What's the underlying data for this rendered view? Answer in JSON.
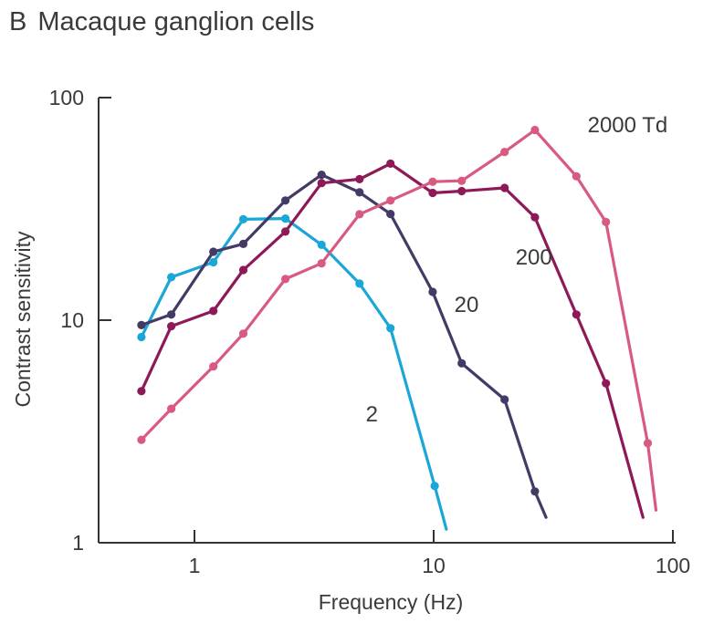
{
  "panel": {
    "letter": "B",
    "title": "Macaque ganglion cells"
  },
  "chart_data": {
    "type": "line",
    "title": "Macaque ganglion cells",
    "xlabel": "Frequency (Hz)",
    "ylabel": "Contrast sensitivity",
    "xscale": "log",
    "yscale": "log",
    "xlim": [
      0.4,
      100
    ],
    "ylim": [
      1,
      100
    ],
    "xticks": [
      {
        "value": 1,
        "label": "1"
      },
      {
        "value": 10,
        "label": "10"
      },
      {
        "value": 100,
        "label": "100"
      }
    ],
    "yticks": [
      {
        "value": 1,
        "label": "1"
      },
      {
        "value": 10,
        "label": "10"
      },
      {
        "value": 100,
        "label": "100"
      }
    ],
    "grid": false,
    "legend": "none",
    "series": [
      {
        "name": "2",
        "color": "#1aa7d8",
        "label_at": [
          5.2,
          3.5
        ],
        "points": [
          [
            0.6,
            8.4
          ],
          [
            0.8,
            15.6
          ],
          [
            1.2,
            18.2
          ],
          [
            1.6,
            28.4
          ],
          [
            2.4,
            28.6
          ],
          [
            3.4,
            21.8
          ],
          [
            4.9,
            14.6
          ],
          [
            6.6,
            9.2
          ],
          [
            10.1,
            1.8
          ],
          [
            11.3,
            1.15
          ]
        ],
        "markers": [
          true,
          true,
          true,
          true,
          true,
          true,
          true,
          true,
          true,
          false
        ]
      },
      {
        "name": "20",
        "color": "#443a66",
        "label_at": [
          12.2,
          10.9
        ],
        "points": [
          [
            0.6,
            9.5
          ],
          [
            0.8,
            10.6
          ],
          [
            1.2,
            20.3
          ],
          [
            1.6,
            22.0
          ],
          [
            2.4,
            34.5
          ],
          [
            3.4,
            45.0
          ],
          [
            4.9,
            37.5
          ],
          [
            6.6,
            30.0
          ],
          [
            9.9,
            13.4
          ],
          [
            13.1,
            6.4
          ],
          [
            19.8,
            4.4
          ],
          [
            26.5,
            1.7
          ],
          [
            29.5,
            1.3
          ]
        ],
        "markers": [
          true,
          true,
          true,
          true,
          true,
          true,
          true,
          true,
          true,
          true,
          true,
          true,
          false
        ]
      },
      {
        "name": "200",
        "color": "#8e1957",
        "label_at": [
          22.0,
          17.8
        ],
        "points": [
          [
            0.6,
            4.8
          ],
          [
            0.8,
            9.4
          ],
          [
            1.2,
            11.0
          ],
          [
            1.6,
            16.8
          ],
          [
            2.4,
            25.0
          ],
          [
            3.4,
            41.3
          ],
          [
            4.9,
            43.0
          ],
          [
            6.6,
            50.5
          ],
          [
            9.9,
            37.3
          ],
          [
            13.1,
            38.0
          ],
          [
            19.8,
            39.3
          ],
          [
            26.5,
            29.0
          ],
          [
            39.5,
            10.6
          ],
          [
            52.5,
            5.2
          ],
          [
            75.0,
            1.3
          ]
        ],
        "markers": [
          true,
          true,
          true,
          true,
          true,
          true,
          true,
          true,
          true,
          true,
          true,
          true,
          true,
          true,
          false
        ]
      },
      {
        "name": "2000 Td",
        "color": "#d95a80",
        "label_at": [
          44.0,
          70.0
        ],
        "points": [
          [
            0.6,
            2.9
          ],
          [
            0.8,
            4.0
          ],
          [
            1.2,
            6.2
          ],
          [
            1.6,
            8.7
          ],
          [
            2.4,
            15.3
          ],
          [
            3.4,
            18.0
          ],
          [
            4.9,
            29.9
          ],
          [
            6.6,
            34.5
          ],
          [
            9.9,
            41.9
          ],
          [
            13.1,
            42.3
          ],
          [
            19.8,
            57.0
          ],
          [
            26.5,
            71.5
          ],
          [
            39.5,
            44.3
          ],
          [
            52.5,
            27.6
          ],
          [
            78.5,
            2.8
          ],
          [
            85.0,
            1.4
          ]
        ],
        "markers": [
          true,
          true,
          true,
          true,
          true,
          true,
          true,
          true,
          true,
          true,
          true,
          true,
          true,
          true,
          true,
          false
        ]
      }
    ]
  }
}
